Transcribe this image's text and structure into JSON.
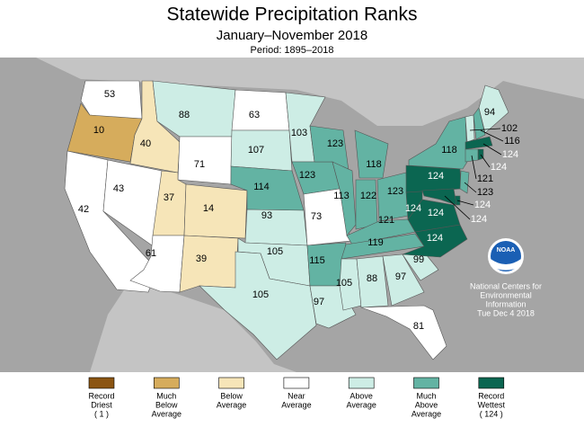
{
  "title": "Statewide Precipitation Ranks",
  "subtitle": "January–November 2018",
  "period": "Period: 1895–2018",
  "states": [
    {
      "rank": 53,
      "color": "#ffffff"
    },
    {
      "rank": 10,
      "color": "#d6ac5c"
    },
    {
      "rank": 42,
      "color": "#ffffff"
    },
    {
      "rank": 43,
      "color": "#ffffff"
    },
    {
      "rank": 40,
      "color": "#f6e5b8"
    },
    {
      "rank": 88,
      "color": "#cdede5"
    },
    {
      "rank": 71,
      "color": "#ffffff"
    },
    {
      "rank": 37,
      "color": "#f6e5b8"
    },
    {
      "rank": 14,
      "color": "#f6e5b8"
    },
    {
      "rank": 61,
      "color": "#ffffff"
    },
    {
      "rank": 39,
      "color": "#f6e5b8"
    },
    {
      "rank": 63,
      "color": "#ffffff"
    },
    {
      "rank": 107,
      "color": "#cdede5"
    },
    {
      "rank": 114,
      "color": "#63b3a3"
    },
    {
      "rank": 93,
      "color": "#cdede5"
    },
    {
      "rank": 105,
      "color": "#cdede5"
    },
    {
      "rank": 105,
      "color": "#cdede5"
    },
    {
      "rank": 103,
      "color": "#cdede5"
    },
    {
      "rank": 123,
      "color": "#63b3a3"
    },
    {
      "rank": 73,
      "color": "#ffffff"
    },
    {
      "rank": 115,
      "color": "#63b3a3"
    },
    {
      "rank": 97,
      "color": "#cdede5"
    },
    {
      "rank": 123,
      "color": "#63b3a3"
    },
    {
      "rank": 113,
      "color": "#63b3a3"
    },
    {
      "rank": 118,
      "color": "#63b3a3"
    },
    {
      "rank": 122,
      "color": "#63b3a3"
    },
    {
      "rank": 123,
      "color": "#63b3a3"
    },
    {
      "rank": 121,
      "color": "#63b3a3"
    },
    {
      "rank": 119,
      "color": "#63b3a3"
    },
    {
      "rank": 105,
      "color": "#cdede5"
    },
    {
      "rank": 88,
      "color": "#cdede5"
    },
    {
      "rank": 97,
      "color": "#cdede5"
    },
    {
      "rank": 81,
      "color": "#ffffff"
    },
    {
      "rank": 99,
      "color": "#cdede5"
    },
    {
      "rank": 124,
      "color": "#0b6651"
    },
    {
      "rank": 124,
      "color": "#0b6651"
    },
    {
      "rank": 124,
      "color": "#0b6651"
    },
    {
      "rank": 124,
      "color": "#0b6651"
    },
    {
      "rank": 118,
      "color": "#63b3a3"
    },
    {
      "rank": 94,
      "color": "#cdede5"
    },
    {
      "rank": 102,
      "color": "#cdede5"
    },
    {
      "rank": 116,
      "color": "#63b3a3"
    },
    {
      "rank": 124,
      "color": "#0b6651"
    },
    {
      "rank": 124,
      "color": "#0b6651"
    },
    {
      "rank": 121,
      "color": "#63b3a3"
    },
    {
      "rank": 123,
      "color": "#63b3a3"
    },
    {
      "rank": 124,
      "color": "#0b6651"
    },
    {
      "rank": 124,
      "color": "#0b6651"
    }
  ],
  "legend": [
    {
      "label": [
        "Record",
        "Driest",
        "( 1 )"
      ],
      "color": "#8b5513"
    },
    {
      "label": [
        "Much",
        "Below",
        "Average"
      ],
      "color": "#d6ac5c"
    },
    {
      "label": [
        "Below",
        "Average"
      ],
      "color": "#f6e5b8"
    },
    {
      "label": [
        "Near",
        "Average"
      ],
      "color": "#ffffff"
    },
    {
      "label": [
        "Above",
        "Average"
      ],
      "color": "#cdede5"
    },
    {
      "label": [
        "Much",
        "Above",
        "Average"
      ],
      "color": "#63b3a3"
    },
    {
      "label": [
        "Record",
        "Wettest",
        "( 124 )"
      ],
      "color": "#0b6651"
    }
  ],
  "logo": "NOAA",
  "credit": [
    "National Centers for",
    "Environmental",
    "Information",
    "Tue Dec  4 2018"
  ]
}
